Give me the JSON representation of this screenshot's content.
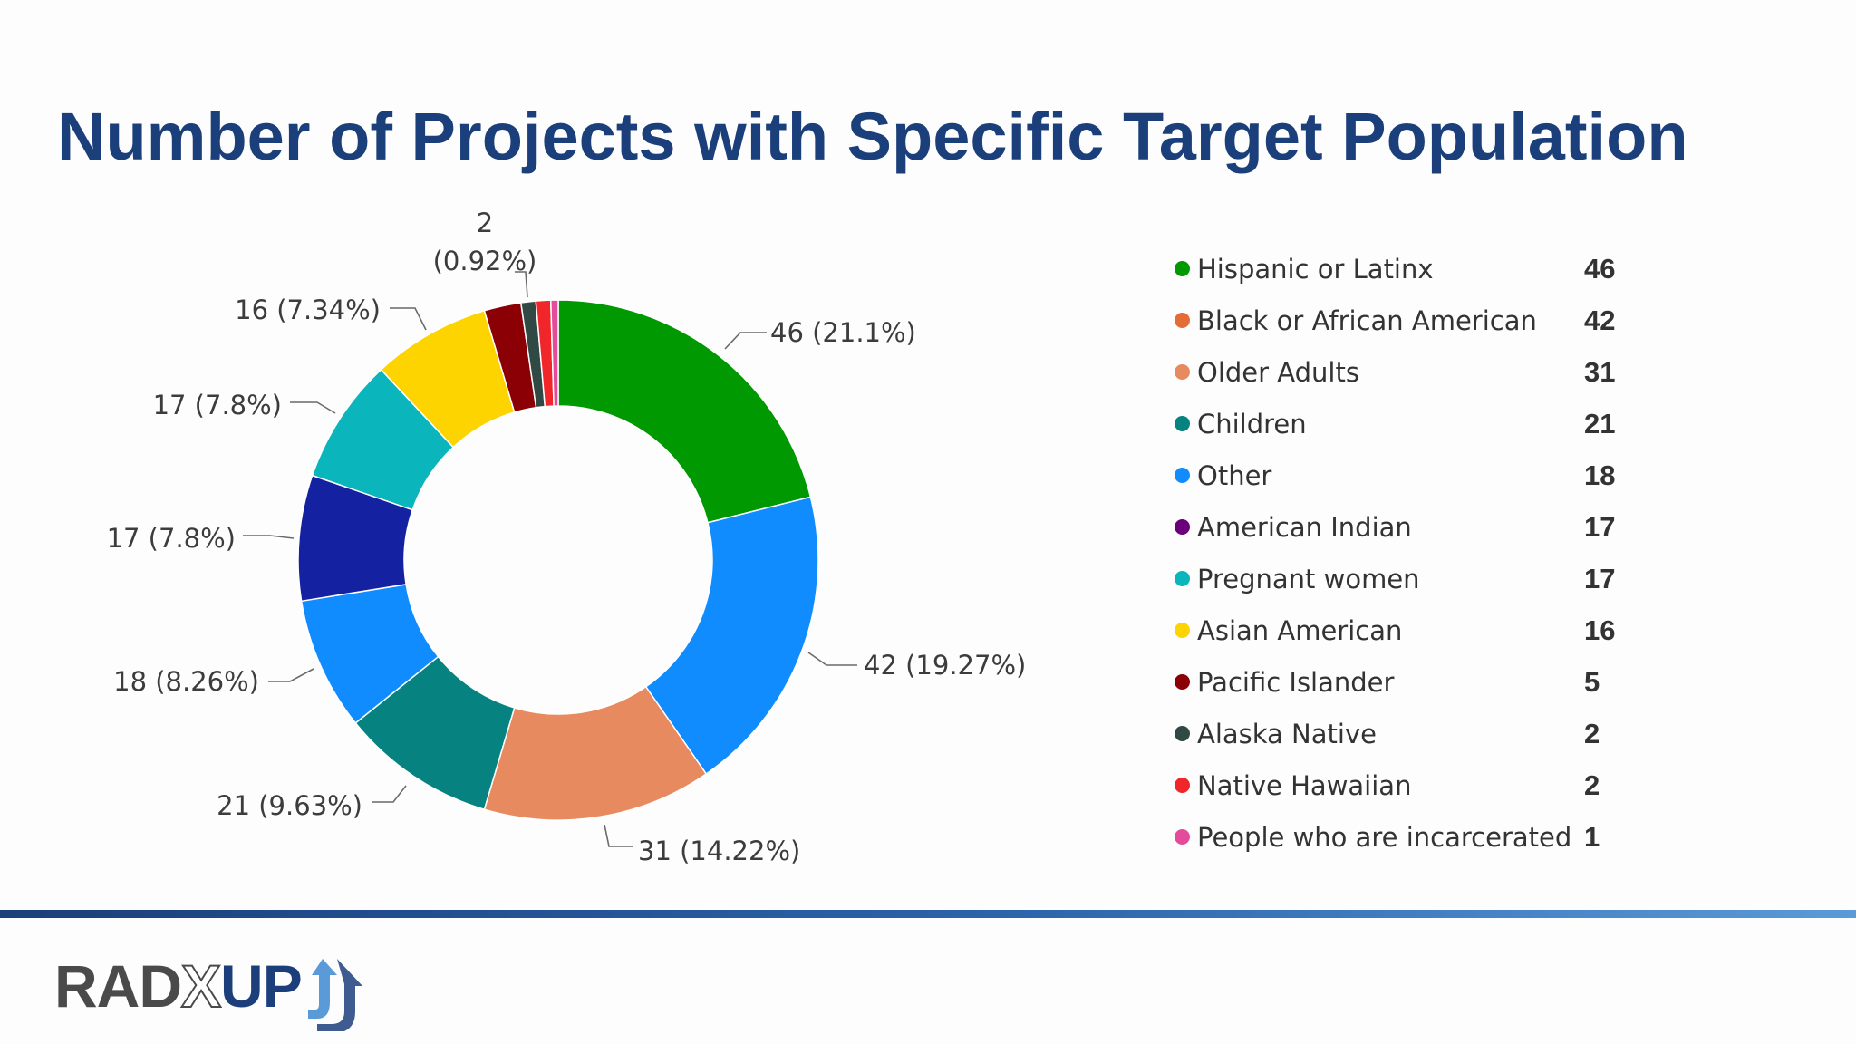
{
  "title": "Number of Projects with Specific Target Population",
  "chart_data": {
    "type": "pie",
    "donut": true,
    "title": "",
    "slices": [
      {
        "label": "Hispanic or Latinx",
        "value": 46,
        "callout": "46 (21.1%)",
        "color": "#019901"
      },
      {
        "label": "Black or African American",
        "value": 42,
        "callout": "42 (19.27%)",
        "color": "#118cff"
      },
      {
        "label": "Older Adults",
        "value": 31,
        "callout": "31 (14.22%)",
        "color": "#e88a5f"
      },
      {
        "label": "Children",
        "value": 21,
        "callout": "21 (9.63%)",
        "color": "#068380"
      },
      {
        "label": "Other",
        "value": 18,
        "callout": "18 (8.26%)",
        "color": "#118cff"
      },
      {
        "label": "American Indian",
        "value": 17,
        "callout": "17 (7.8%)",
        "color": "#1421a0"
      },
      {
        "label": "Pregnant women",
        "value": 17,
        "callout": "17 (7.8%)",
        "color": "#0ab5bc"
      },
      {
        "label": "Asian American",
        "value": 16,
        "callout": "16 (7.34%)",
        "color": "#fdd300"
      },
      {
        "label": "Pacific Islander",
        "value": 5,
        "callout": "",
        "color": "#8b0005"
      },
      {
        "label": "Alaska Native",
        "value": 2,
        "callout": "2\n(0.92%)",
        "color": "#304944"
      },
      {
        "label": "Native Hawaiian",
        "value": 2,
        "callout": "",
        "color": "#f0262b"
      },
      {
        "label": "People who are incarcerated",
        "value": 1,
        "callout": "",
        "color": "#e44c9b"
      }
    ],
    "legend": {
      "placement": "right",
      "items": [
        {
          "label": "Hispanic or Latinx",
          "value": "46",
          "color": "#019901"
        },
        {
          "label": "Black or African American",
          "value": "42",
          "color": "#e66c37"
        },
        {
          "label": "Older Adults",
          "value": "31",
          "color": "#e88a5f"
        },
        {
          "label": "Children",
          "value": "21",
          "color": "#068380"
        },
        {
          "label": "Other",
          "value": "18",
          "color": "#118cff"
        },
        {
          "label": "American Indian",
          "value": "17",
          "color": "#6b007b"
        },
        {
          "label": "Pregnant women",
          "value": "17",
          "color": "#0ab5bc"
        },
        {
          "label": "Asian American",
          "value": "16",
          "color": "#fdd300"
        },
        {
          "label": "Pacific Islander",
          "value": "5",
          "color": "#8b0005"
        },
        {
          "label": "Alaska Native",
          "value": "2",
          "color": "#304944"
        },
        {
          "label": "Native Hawaiian",
          "value": "2",
          "color": "#f0262b"
        },
        {
          "label": "People who are incarcerated",
          "value": "1",
          "color": "#e44c9b"
        }
      ]
    }
  },
  "logo": {
    "part1": "RAD",
    "part2": "X",
    "part3": "UP",
    "part4": "J"
  },
  "colors": {
    "title": "#1b3f7a",
    "footer_bar": "#1b3f7a",
    "logo_up": "#1c3f7c",
    "logo_arrow": "#5a9ad8"
  }
}
